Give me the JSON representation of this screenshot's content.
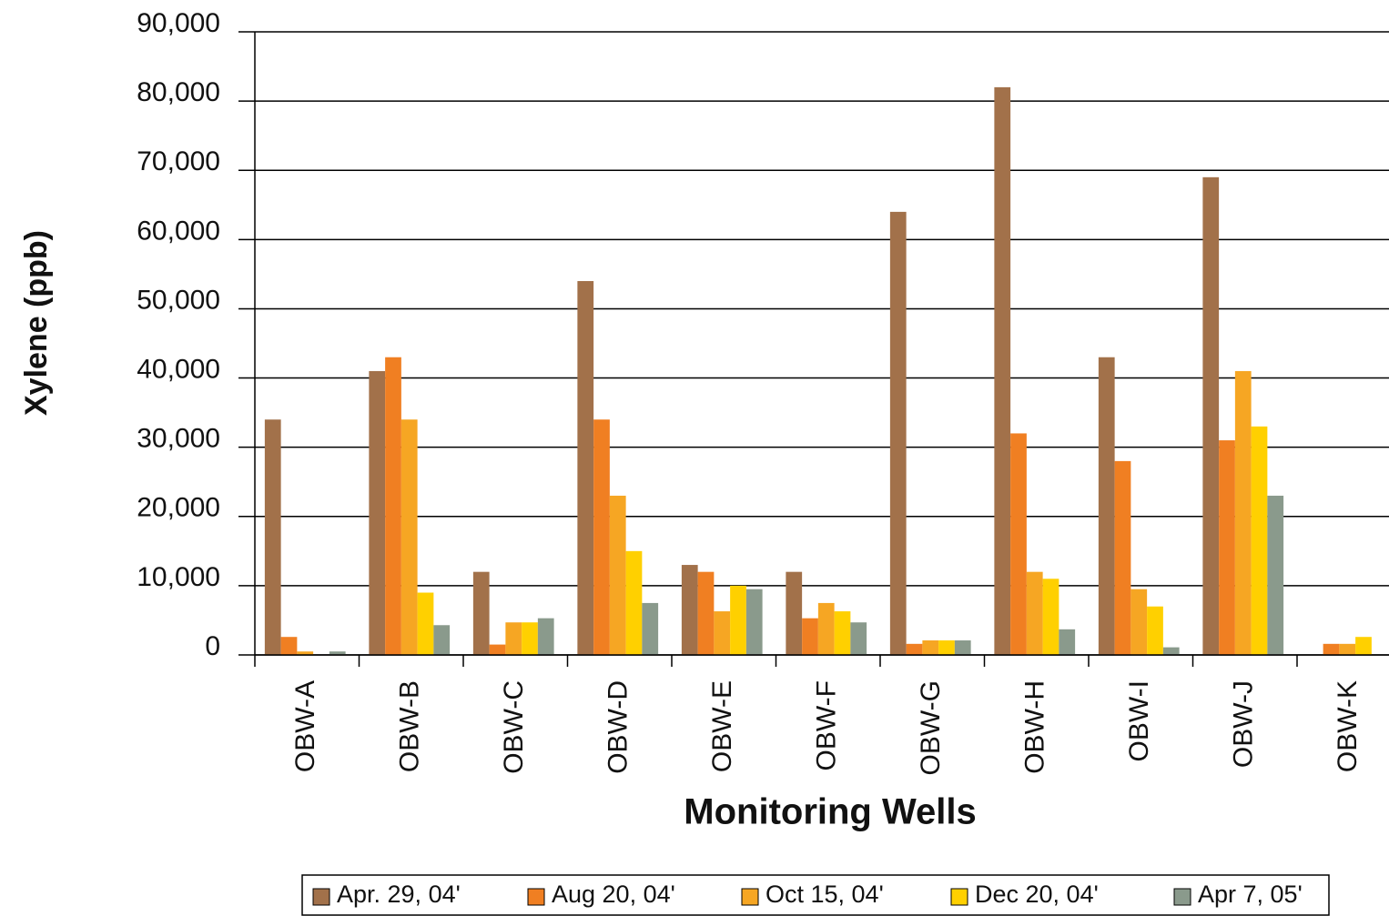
{
  "chart_data": {
    "type": "bar",
    "x_label": "Monitoring Wells",
    "y_label": "Xylene (ppb)",
    "categories": [
      "OBW-A",
      "OBW-B",
      "OBW-C",
      "OBW-D",
      "OBW-E",
      "OBW-F",
      "OBW-G",
      "OBW-H",
      "OBW-I",
      "OBW-J",
      "OBW-K"
    ],
    "series": [
      {
        "name": "Apr. 29, 04'",
        "color": "#a2714a",
        "values": [
          34000,
          41000,
          12000,
          54000,
          13000,
          12000,
          64000,
          82000,
          43000,
          69000,
          0
        ]
      },
      {
        "name": "Aug 20, 04'",
        "color": "#f07f22",
        "values": [
          2600,
          43000,
          1500,
          34000,
          12000,
          5300,
          1600,
          32000,
          28000,
          31000,
          1600
        ]
      },
      {
        "name": "Oct 15, 04'",
        "color": "#f6a623",
        "values": [
          500,
          34000,
          4700,
          23000,
          6300,
          7500,
          2100,
          12000,
          9500,
          41000,
          1600
        ]
      },
      {
        "name": "Dec 20, 04'",
        "color": "#ffd000",
        "values": [
          0,
          9000,
          4700,
          15000,
          10000,
          6300,
          2100,
          11000,
          7000,
          33000,
          2600
        ]
      },
      {
        "name": "Apr 7, 05'",
        "color": "#8a9a8c",
        "values": [
          500,
          4300,
          5300,
          7500,
          9500,
          4700,
          2100,
          3700,
          1100,
          23000,
          0
        ]
      }
    ],
    "ylim": [
      0,
      90000
    ],
    "yticks": [
      0,
      {
        "value": 10000,
        "label": "10,000"
      },
      {
        "value": 20000,
        "label": "20,000"
      },
      {
        "value": 30000,
        "label": "30,000"
      },
      {
        "value": 40000,
        "label": "40,000"
      },
      {
        "value": 50000,
        "label": "50,000"
      },
      {
        "value": 60000,
        "label": "60,000"
      },
      {
        "value": 70000,
        "label": "70,000"
      },
      {
        "value": 80000,
        "label": "80,000"
      },
      {
        "value": 90000,
        "label": "90,000"
      }
    ],
    "grid": true,
    "legend": "bottom"
  }
}
